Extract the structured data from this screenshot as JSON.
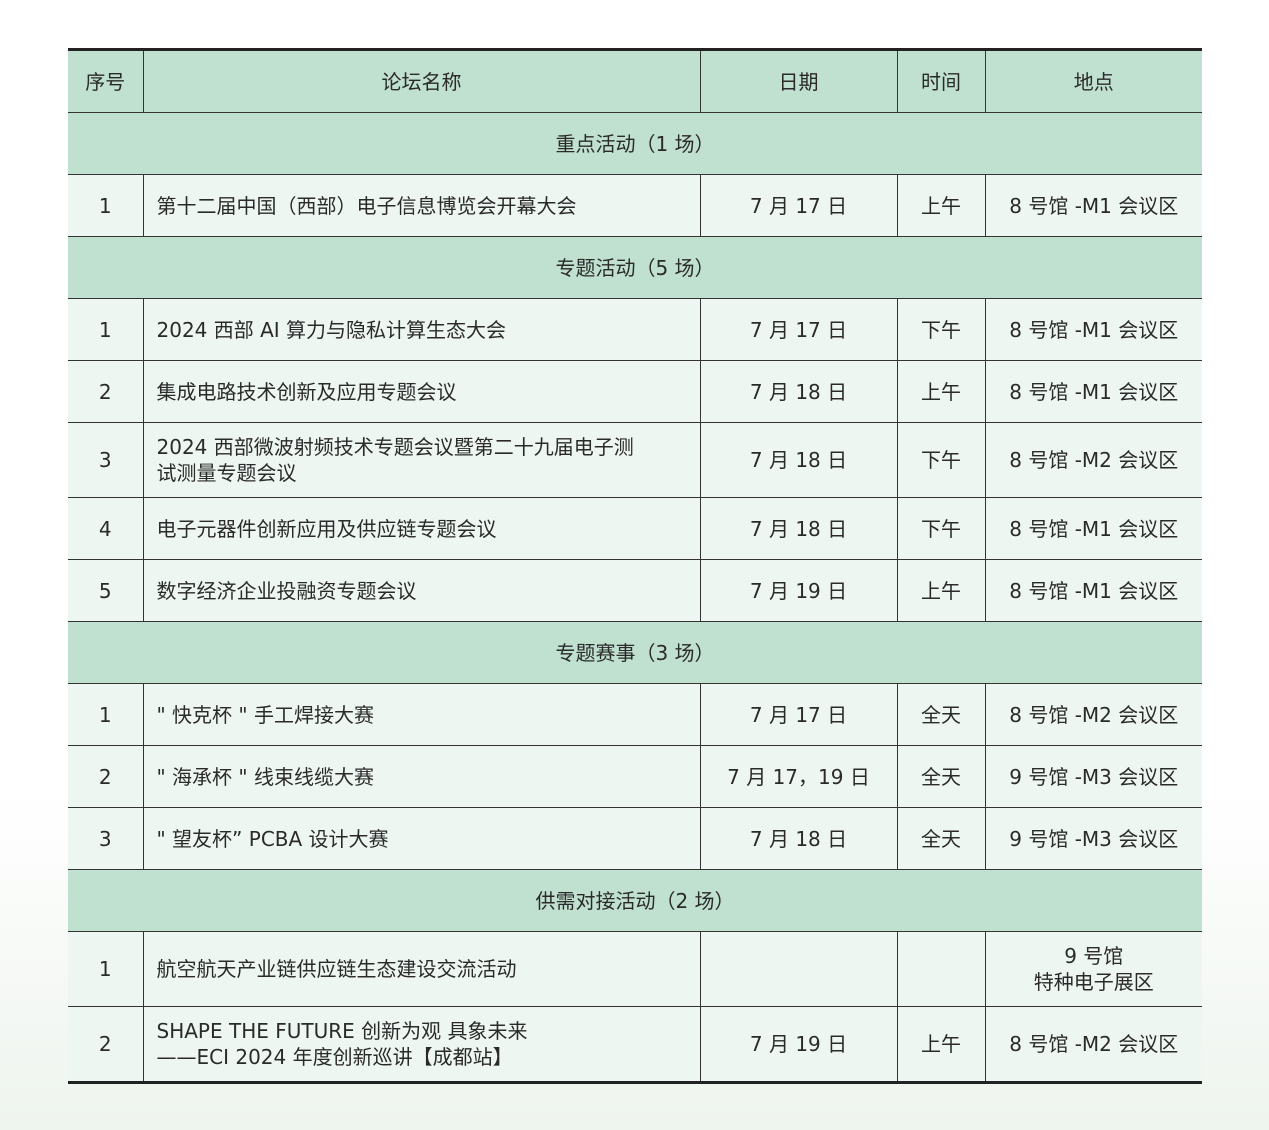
{
  "headers": [
    "序号",
    "论坛名称",
    "日期",
    "时间",
    "地点"
  ],
  "sections": [
    {
      "title": "重点活动（1 场）",
      "rows": [
        {
          "no": "1",
          "name": "第十二届中国（西部）电子信息博览会开幕大会",
          "date": "7 月 17 日",
          "time": "上午",
          "place": "8 号馆 -M1 会议区"
        }
      ]
    },
    {
      "title": "专题活动（5 场）",
      "rows": [
        {
          "no": "1",
          "name": "2024 西部 AI 算力与隐私计算生态大会",
          "date": "7 月 17 日",
          "time": "下午",
          "place": "8 号馆 -M1 会议区"
        },
        {
          "no": "2",
          "name": "集成电路技术创新及应用专题会议",
          "date": "7 月 18 日",
          "time": "上午",
          "place": "8 号馆 -M1 会议区"
        },
        {
          "no": "3",
          "name": "2024 西部微波射频技术专题会议暨第二十九届电子测\n试测量专题会议",
          "date": "7 月 18 日",
          "time": "下午",
          "place": "8 号馆 -M2 会议区"
        },
        {
          "no": "4",
          "name": "电子元器件创新应用及供应链专题会议",
          "date": "7 月 18 日",
          "time": "下午",
          "place": "8 号馆 -M1 会议区"
        },
        {
          "no": "5",
          "name": "数字经济企业投融资专题会议",
          "date": "7 月 19 日",
          "time": "上午",
          "place": "8 号馆 -M1 会议区"
        }
      ]
    },
    {
      "title": "专题赛事（3 场）",
      "rows": [
        {
          "no": "1",
          "name": "\" 快克杯 \" 手工焊接大赛",
          "date": "7 月 17 日",
          "time": "全天",
          "place": "8 号馆 -M2 会议区"
        },
        {
          "no": "2",
          "name": "\" 海承杯 \" 线束线缆大赛",
          "date": "7 月 17，19 日",
          "time": "全天",
          "place": "9 号馆 -M3 会议区"
        },
        {
          "no": "3",
          "name": "\" 望友杯” PCBA 设计大赛",
          "date": "7 月 18 日",
          "time": "全天",
          "place": "9 号馆 -M3 会议区"
        }
      ]
    },
    {
      "title": "供需对接活动（2 场）",
      "rows": [
        {
          "no": "1",
          "name": "航空航天产业链供应链生态建设交流活动",
          "date": "",
          "time": "",
          "place": "9 号馆\n特种电子展区"
        },
        {
          "no": "2",
          "name": "SHAPE THE FUTURE 创新为观  具象未来\n——ECI 2024 年度创新巡讲【成都站】",
          "date": "7 月 19 日",
          "time": "上午",
          "place": "8 号馆 -M2 会议区"
        }
      ]
    }
  ]
}
